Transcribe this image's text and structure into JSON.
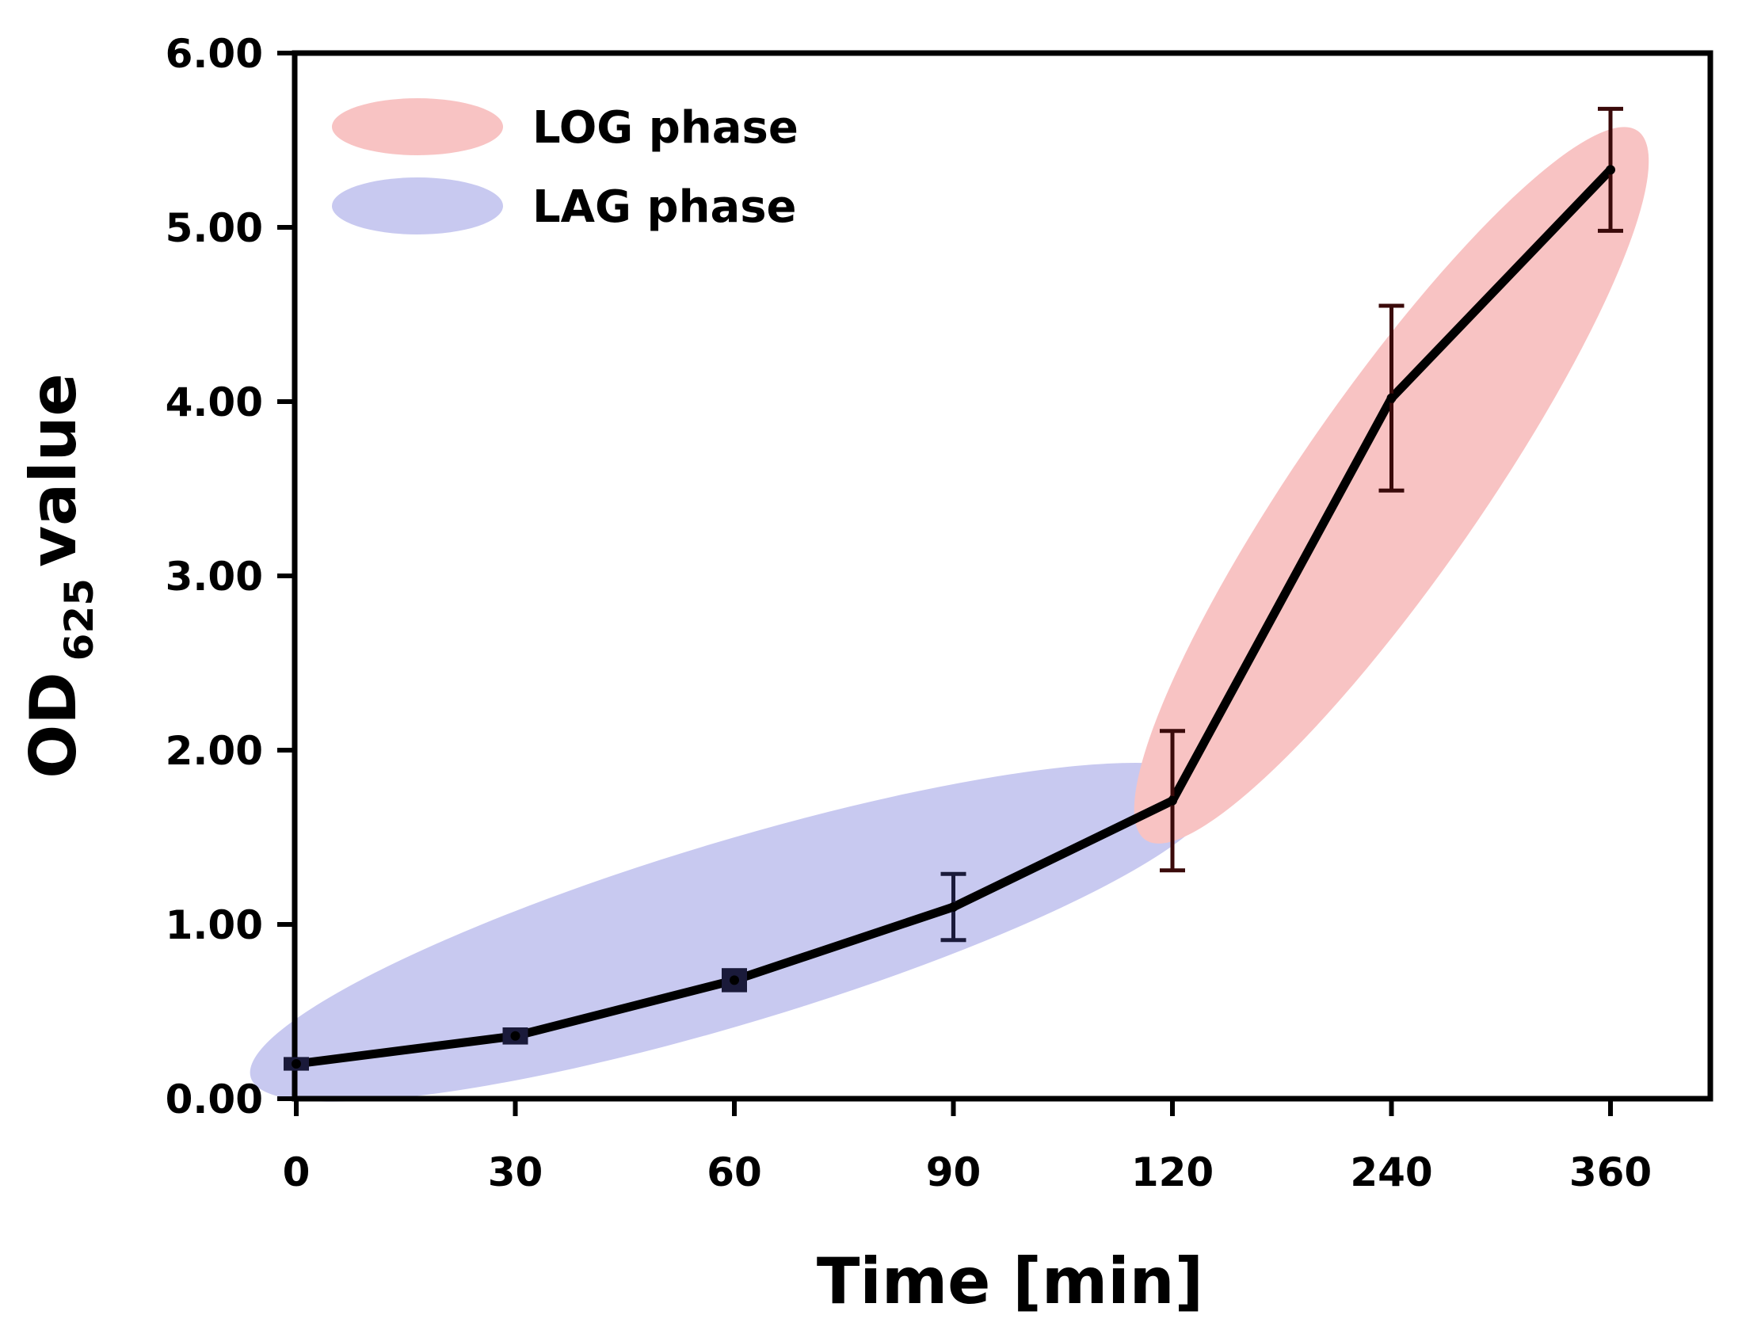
{
  "chart_data": {
    "type": "line",
    "title": "",
    "xlabel": "Time [min]",
    "ylabel": {
      "prefix": "OD",
      "subscript": "625",
      "suffix": "value"
    },
    "categories": [
      "0",
      "30",
      "60",
      "90",
      "120",
      "240",
      "360"
    ],
    "series": [
      {
        "name": "OD625",
        "values": [
          0.2,
          0.36,
          0.68,
          1.1,
          1.71,
          4.02,
          5.33
        ],
        "errors": [
          0.03,
          0.04,
          0.06,
          0.19,
          0.4,
          0.53,
          0.35
        ],
        "color": "#000000"
      }
    ],
    "ylim": [
      0,
      6
    ],
    "yticks": [
      "0.00",
      "1.00",
      "2.00",
      "3.00",
      "4.00",
      "5.00",
      "6.00"
    ],
    "grid": false,
    "legend": {
      "position": "top-left",
      "entries": [
        {
          "label": "LOG phase",
          "color": "#f8c3c3"
        },
        {
          "label": "LAG phase",
          "color": "#c8c9f0"
        }
      ]
    },
    "phases": [
      {
        "name": "LAG phase",
        "from_index": 0,
        "to_index": 4,
        "color": "#c8c9f0"
      },
      {
        "name": "LOG phase",
        "from_index": 4,
        "to_index": 6,
        "color": "#f8c3c3"
      }
    ]
  }
}
